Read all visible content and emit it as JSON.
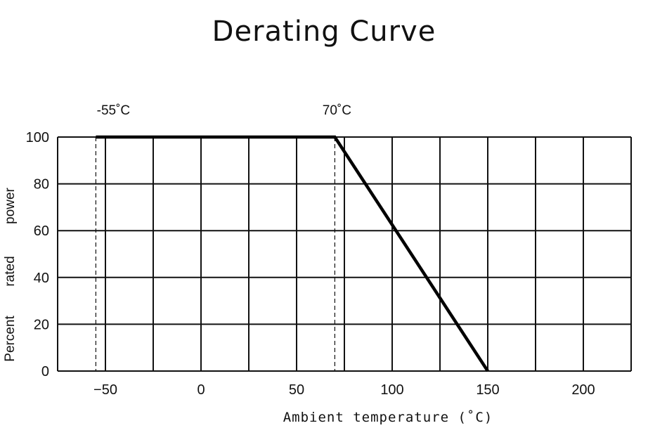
{
  "chart_data": {
    "type": "line",
    "title": "Derating Curve",
    "xlabel": "Ambient temperature (˚C)",
    "ylabel_words": [
      "Percent",
      "rated",
      "power"
    ],
    "xlim": [
      -75,
      225
    ],
    "ylim": [
      0,
      100
    ],
    "x_ticks": [
      -50,
      0,
      50,
      100,
      150,
      200
    ],
    "y_ticks": [
      0,
      20,
      40,
      60,
      80,
      100
    ],
    "grid": true,
    "series": [
      {
        "x": [
          -55,
          70,
          150
        ],
        "y": [
          100,
          100,
          0
        ]
      }
    ],
    "reference_lines": [
      {
        "x": -55,
        "label": "-55˚C"
      },
      {
        "x": 70,
        "label": "70˚C"
      }
    ]
  }
}
